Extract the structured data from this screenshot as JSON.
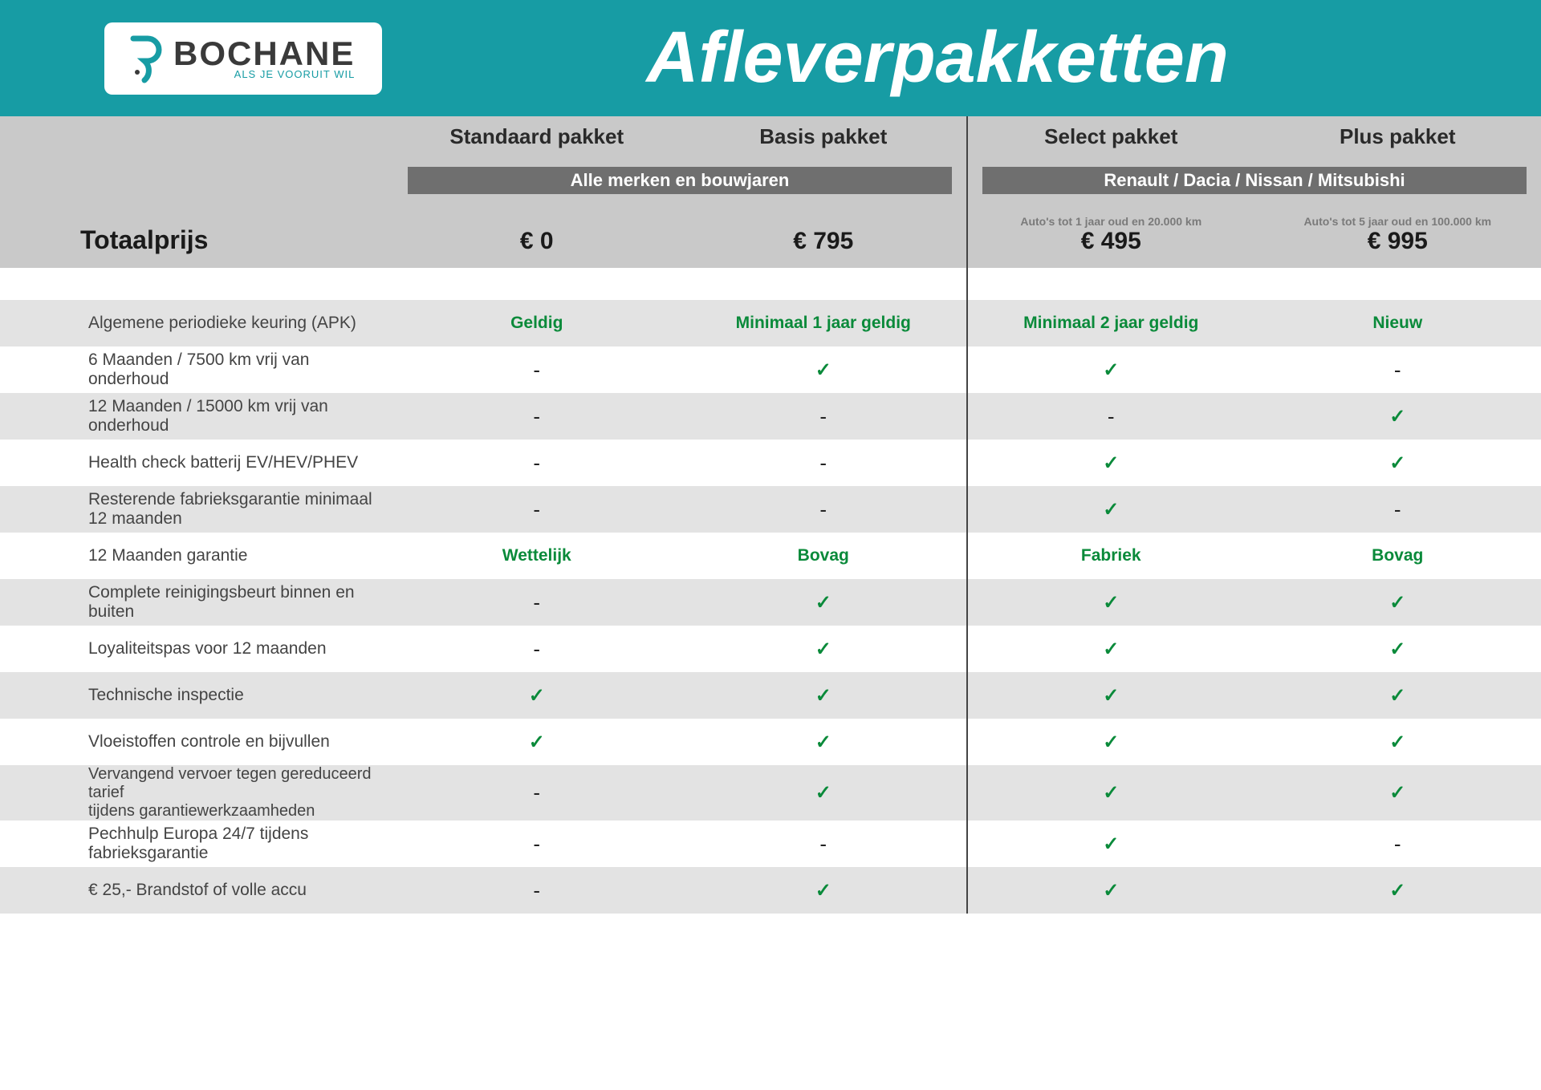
{
  "brand": {
    "name": "BOCHANE",
    "tagline": "ALS JE VOORUIT WIL"
  },
  "page_title": "Afleverpakketten",
  "colors": {
    "teal": "#179ca4",
    "header_gray": "#c9c9c9",
    "pill_gray": "#6f6f6f",
    "row_alt": "#e3e3e3",
    "green": "#0a8a3a",
    "text": "#2a2a2a"
  },
  "total_label": "Totaalprijs",
  "groups": [
    {
      "pill": "Alle merken en bouwjaren",
      "span": 2
    },
    {
      "pill": "Renault / Dacia / Nissan / Mitsubishi",
      "span": 2
    }
  ],
  "plans": [
    {
      "name": "Standaard pakket",
      "price": "€ 0",
      "subtext": ""
    },
    {
      "name": "Basis pakket",
      "price": "€ 795",
      "subtext": ""
    },
    {
      "name": "Select pakket",
      "price": "€ 495",
      "subtext": "Auto's tot 1 jaar oud en 20.000 km"
    },
    {
      "name": "Plus pakket",
      "price": "€ 995",
      "subtext": "Auto's tot 5 jaar oud en 100.000 km"
    }
  ],
  "rows": [
    {
      "label": "Algemene periodieke keuring (APK)",
      "alt": true,
      "cells": [
        {
          "t": "text",
          "v": "Geldig"
        },
        {
          "t": "text",
          "v": "Minimaal 1 jaar geldig"
        },
        {
          "t": "text",
          "v": "Minimaal 2 jaar geldig"
        },
        {
          "t": "text",
          "v": "Nieuw"
        }
      ]
    },
    {
      "label": "6 Maanden / 7500 km vrij van onderhoud",
      "alt": false,
      "cells": [
        {
          "t": "dash"
        },
        {
          "t": "check"
        },
        {
          "t": "check"
        },
        {
          "t": "dash"
        }
      ]
    },
    {
      "label": "12 Maanden / 15000 km vrij van onderhoud",
      "alt": true,
      "cells": [
        {
          "t": "dash"
        },
        {
          "t": "dash"
        },
        {
          "t": "dash"
        },
        {
          "t": "check"
        }
      ]
    },
    {
      "label": "Health check batterij EV/HEV/PHEV",
      "alt": false,
      "cells": [
        {
          "t": "dash"
        },
        {
          "t": "dash"
        },
        {
          "t": "check"
        },
        {
          "t": "check"
        }
      ]
    },
    {
      "label": "Resterende fabrieksgarantie minimaal 12 maanden",
      "alt": true,
      "cells": [
        {
          "t": "dash"
        },
        {
          "t": "dash"
        },
        {
          "t": "check"
        },
        {
          "t": "dash"
        }
      ]
    },
    {
      "label": "12 Maanden  garantie",
      "alt": false,
      "cells": [
        {
          "t": "text",
          "v": "Wettelijk"
        },
        {
          "t": "text",
          "v": "Bovag"
        },
        {
          "t": "text",
          "v": "Fabriek"
        },
        {
          "t": "text",
          "v": "Bovag"
        }
      ]
    },
    {
      "label": "Complete reinigingsbeurt binnen en buiten",
      "alt": true,
      "cells": [
        {
          "t": "dash"
        },
        {
          "t": "check"
        },
        {
          "t": "check"
        },
        {
          "t": "check"
        }
      ]
    },
    {
      "label": "Loyaliteitspas voor 12 maanden",
      "alt": false,
      "cells": [
        {
          "t": "dash"
        },
        {
          "t": "check"
        },
        {
          "t": "check"
        },
        {
          "t": "check"
        }
      ]
    },
    {
      "label": "Technische inspectie",
      "alt": true,
      "cells": [
        {
          "t": "check"
        },
        {
          "t": "check"
        },
        {
          "t": "check"
        },
        {
          "t": "check"
        }
      ]
    },
    {
      "label": "Vloeistoffen controle en bijvullen",
      "alt": false,
      "cells": [
        {
          "t": "check"
        },
        {
          "t": "check"
        },
        {
          "t": "check"
        },
        {
          "t": "check"
        }
      ]
    },
    {
      "label": "Vervangend vervoer tegen gereduceerd tarief\ntijdens garantiewerkzaamheden",
      "alt": true,
      "cells": [
        {
          "t": "dash"
        },
        {
          "t": "check"
        },
        {
          "t": "check"
        },
        {
          "t": "check"
        }
      ]
    },
    {
      "label": "Pechhulp Europa 24/7 tijdens fabrieksgarantie",
      "alt": false,
      "cells": [
        {
          "t": "dash"
        },
        {
          "t": "dash"
        },
        {
          "t": "check"
        },
        {
          "t": "dash"
        }
      ]
    },
    {
      "label": "€ 25,- Brandstof of  volle accu",
      "alt": true,
      "cells": [
        {
          "t": "dash"
        },
        {
          "t": "check"
        },
        {
          "t": "check"
        },
        {
          "t": "check"
        }
      ]
    }
  ]
}
